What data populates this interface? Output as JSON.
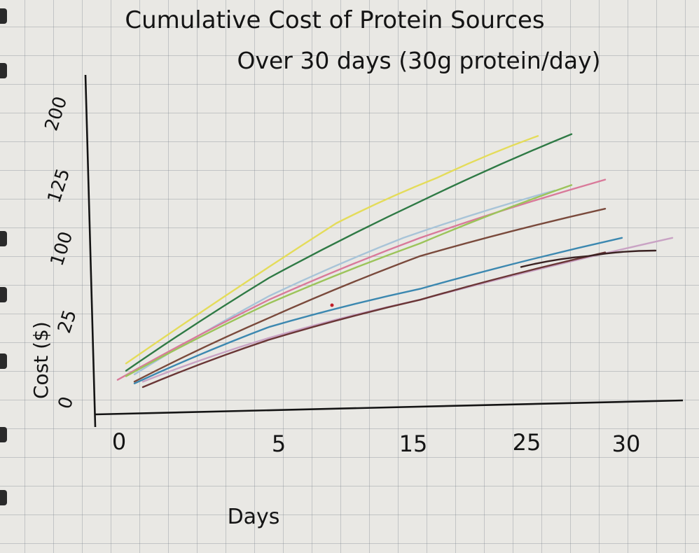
{
  "chart_data": {
    "type": "line",
    "title_line1": "Cumulative Cost of Protein Sources",
    "title_line2": "Over 30 days (30g protein/day)",
    "xlabel": "Days",
    "ylabel": "Cost ($)",
    "x_ticks": [
      "0",
      "5",
      "15",
      "25",
      "30"
    ],
    "y_ticks": [
      "0",
      "25",
      "100",
      "125",
      "200"
    ],
    "grid": true,
    "legend": "none",
    "series": [
      {
        "color": "#e4dc5a",
        "points": [
          [
            0.5,
            23
          ],
          [
            13,
            100
          ],
          [
            19,
            125
          ],
          [
            25,
            148
          ]
        ]
      },
      {
        "color": "#2f7a45",
        "points": [
          [
            0.5,
            19
          ],
          [
            9,
            70
          ],
          [
            18,
            112
          ],
          [
            27,
            149
          ]
        ]
      },
      {
        "color": "#a8c4d8",
        "points": [
          [
            1,
            17
          ],
          [
            9,
            60
          ],
          [
            17,
            92
          ],
          [
            26,
            118
          ]
        ]
      },
      {
        "color": "#d97a9a",
        "points": [
          [
            0,
            14
          ],
          [
            9,
            58
          ],
          [
            18,
            92
          ],
          [
            29,
            124
          ]
        ]
      },
      {
        "color": "#9cc45a",
        "points": [
          [
            0.5,
            16
          ],
          [
            9,
            56
          ],
          [
            18,
            89
          ],
          [
            27,
            121
          ]
        ]
      },
      {
        "color": "#7a4a3c",
        "points": [
          [
            1,
            13
          ],
          [
            9,
            48
          ],
          [
            18,
            82
          ],
          [
            29,
            108
          ]
        ]
      },
      {
        "color": "#3c88b0",
        "points": [
          [
            1,
            12
          ],
          [
            9,
            43
          ],
          [
            18,
            64
          ],
          [
            30,
            92
          ]
        ]
      },
      {
        "color": "#c9a3c4",
        "points": [
          [
            1.5,
            13
          ],
          [
            9,
            37
          ],
          [
            18,
            58
          ],
          [
            33,
            92
          ]
        ]
      },
      {
        "color": "#6a3636",
        "points": [
          [
            1.5,
            10
          ],
          [
            9,
            36
          ],
          [
            18,
            58
          ],
          [
            29,
            84
          ]
        ]
      },
      {
        "color": "#3a2222",
        "points": [
          [
            24,
            76
          ],
          [
            28,
            82
          ],
          [
            32,
            85
          ]
        ]
      }
    ]
  }
}
